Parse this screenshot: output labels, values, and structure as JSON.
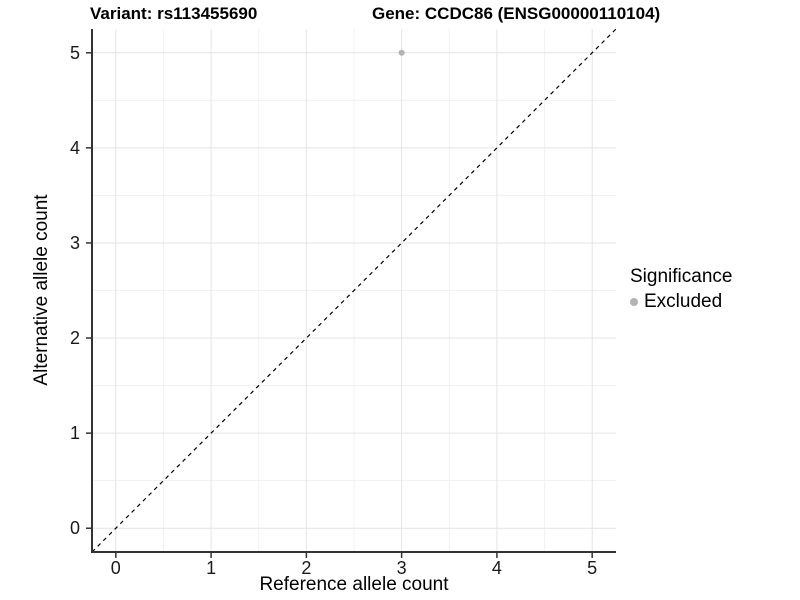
{
  "header": {
    "variant_title": "Variant: rs113455690",
    "gene_title": "Gene: CCDC86 (ENSG00000110104)"
  },
  "axes": {
    "x_label": "Reference allele count",
    "y_label": "Alternative allele count"
  },
  "legend": {
    "title": "Significance",
    "items": [
      {
        "label": "Excluded",
        "color": "#b3b3b3"
      }
    ]
  },
  "colors": {
    "background": "#ffffff",
    "grid_major": "#e4e4e4",
    "grid_minor": "#f1f1f1",
    "axis_line": "#333333",
    "tick_mark": "#333333",
    "tick_text": "#1a1a1a",
    "title_text": "#000000",
    "point": "#b3b3b3",
    "identity_line": "#000000"
  },
  "chart_data": {
    "type": "scatter",
    "title": "Variant: rs113455690 — Gene: CCDC86 (ENSG00000110104)",
    "xlabel": "Reference allele count",
    "ylabel": "Alternative allele count",
    "xlim": [
      -0.25,
      5.25
    ],
    "ylim": [
      -0.25,
      5.25
    ],
    "x_ticks": [
      0,
      1,
      2,
      3,
      4,
      5
    ],
    "y_ticks": [
      0,
      1,
      2,
      3,
      4,
      5
    ],
    "minor_ticks": [
      0.5,
      1.5,
      2.5,
      3.5,
      4.5
    ],
    "grid": "major and minor gridlines, light gray on white panel",
    "legend_position": "right-center",
    "series": [
      {
        "name": "Excluded",
        "color": "#b3b3b3",
        "points": [
          [
            3,
            5
          ]
        ]
      }
    ],
    "reference_line": {
      "type": "identity (y = x)",
      "style": "dashed",
      "color": "#000000"
    }
  }
}
